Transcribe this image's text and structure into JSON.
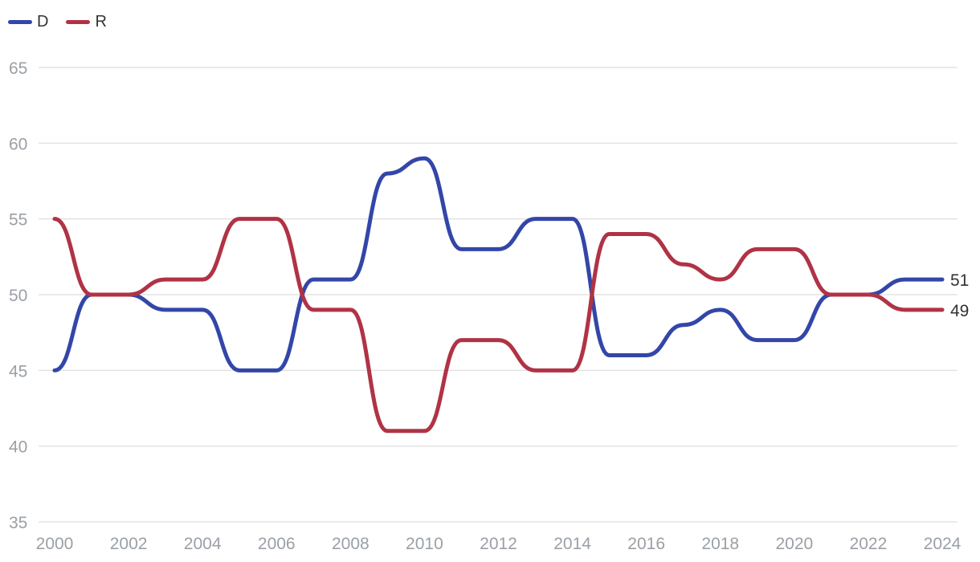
{
  "chart_data": {
    "type": "line",
    "title": "",
    "xlabel": "",
    "ylabel": "",
    "x": [
      2000,
      2001,
      2002,
      2003,
      2004,
      2005,
      2006,
      2007,
      2008,
      2009,
      2010,
      2011,
      2012,
      2013,
      2014,
      2015,
      2016,
      2017,
      2018,
      2019,
      2020,
      2021,
      2022,
      2023,
      2024
    ],
    "xticks": [
      "2000",
      "2002",
      "2004",
      "2006",
      "2008",
      "2010",
      "2012",
      "2014",
      "2016",
      "2018",
      "2020",
      "2022",
      "2024"
    ],
    "yticks": [
      "35",
      "40",
      "45",
      "50",
      "55",
      "60",
      "65"
    ],
    "xlim": [
      2000,
      2024
    ],
    "ylim": [
      35,
      65
    ],
    "grid": true,
    "legend_position": "top-left",
    "series": [
      {
        "name": "D",
        "color": "#3346a8",
        "end_label": "51",
        "values": [
          45,
          50,
          50,
          49,
          49,
          45,
          45,
          51,
          51,
          58,
          59,
          53,
          53,
          55,
          55,
          46,
          46,
          48,
          49,
          47,
          47,
          50,
          50,
          51,
          51
        ]
      },
      {
        "name": "R",
        "color": "#b03345",
        "end_label": "49",
        "values": [
          55,
          50,
          50,
          51,
          51,
          55,
          55,
          49,
          49,
          41,
          41,
          47,
          47,
          45,
          45,
          54,
          54,
          52,
          51,
          53,
          53,
          50,
          50,
          49,
          49
        ]
      }
    ]
  }
}
